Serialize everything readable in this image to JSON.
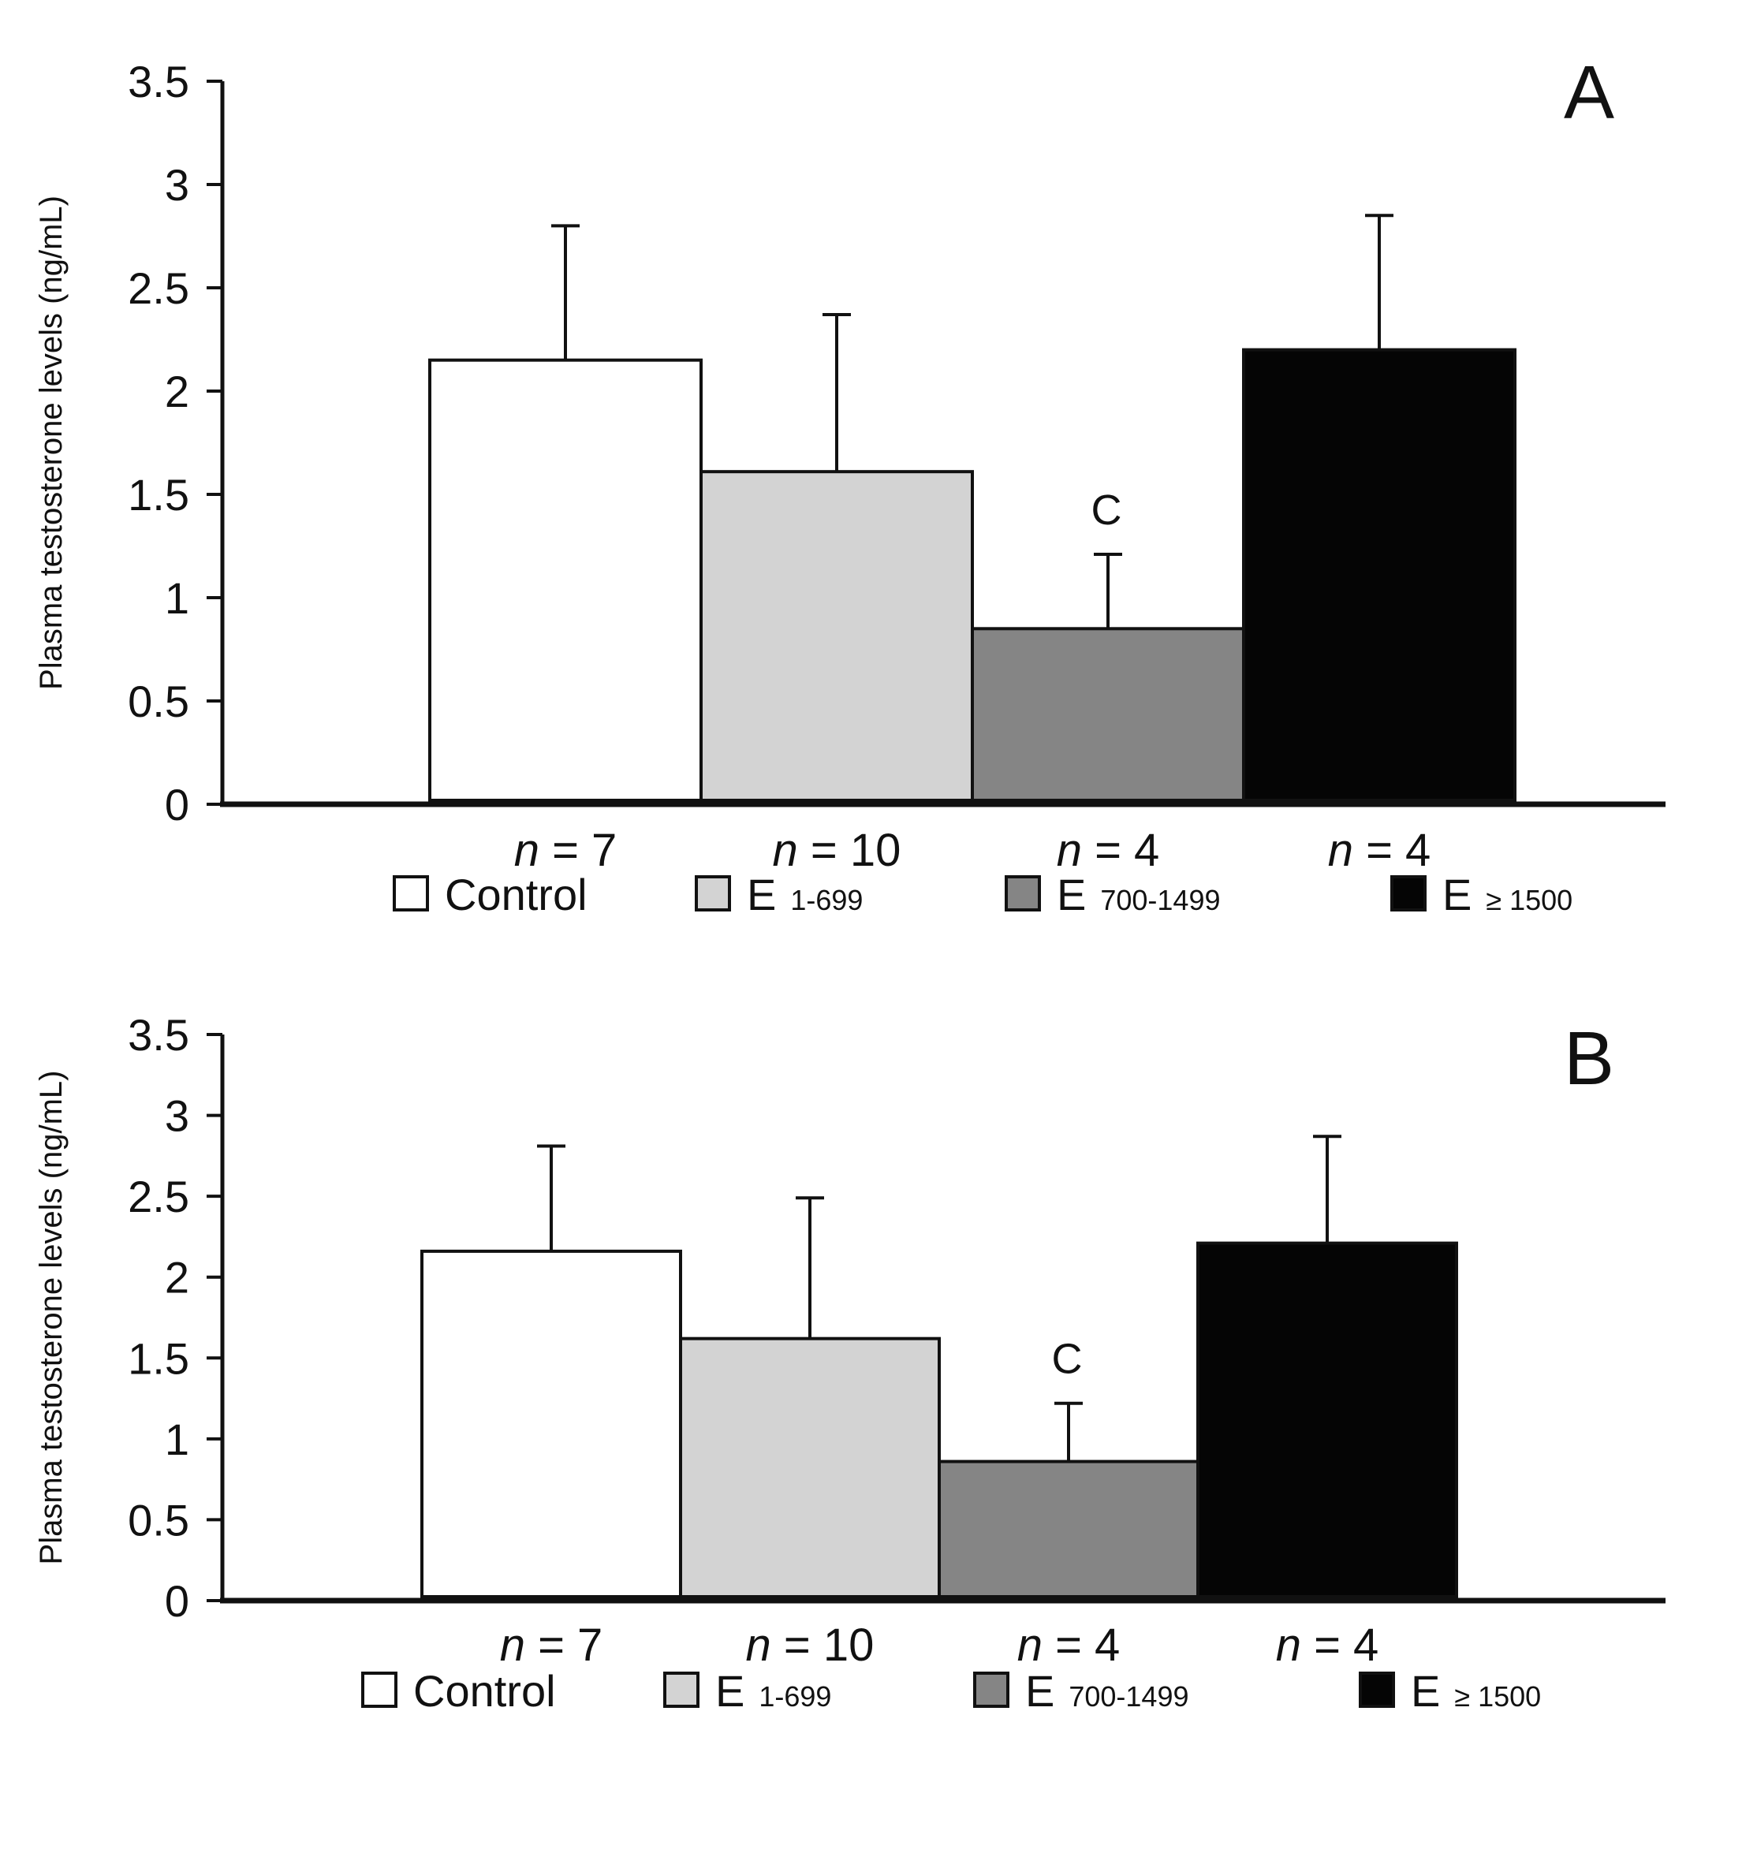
{
  "chart_data": [
    {
      "type": "bar",
      "panel_label": "A",
      "ylabel": "Plasma testosterone levels (ng/mL)",
      "ylim": [
        0,
        3.5
      ],
      "yticks": [
        "0",
        "0.5",
        "1",
        "1.5",
        "2",
        "2.5",
        "3",
        "3.5"
      ],
      "ytick_values": [
        0,
        0.5,
        1,
        1.5,
        2,
        2.5,
        3,
        3.5
      ],
      "categories": [
        "Control",
        "E 1-699",
        "E 700-1499",
        "E ≥ 1500"
      ],
      "n_labels": [
        "n = 7",
        "n = 10",
        "n = 4",
        "n = 4"
      ],
      "values": [
        2.15,
        1.61,
        0.85,
        2.2
      ],
      "error_upper": [
        2.8,
        2.37,
        1.21,
        2.85
      ],
      "significance": [
        "",
        "",
        "C",
        ""
      ],
      "colors": [
        "#ffffff",
        "#d3d3d3",
        "#858585",
        "#050505"
      ],
      "legend": [
        {
          "main": "Control",
          "sub": ""
        },
        {
          "main": "E",
          "sub": "1-699"
        },
        {
          "main": "E",
          "sub": "700-1499"
        },
        {
          "main": "E",
          "sub": "≥ 1500"
        }
      ]
    },
    {
      "type": "bar",
      "panel_label": "B",
      "ylabel": "Plasma testosterone levels (ng/mL)",
      "ylim": [
        0,
        3.5
      ],
      "yticks": [
        "0",
        "0.5",
        "1",
        "1.5",
        "2",
        "2.5",
        "3",
        "3.5"
      ],
      "ytick_values": [
        0,
        0.5,
        1,
        1.5,
        2,
        2.5,
        3,
        3.5
      ],
      "categories": [
        "Control",
        "E 1-699",
        "E 700-1499",
        "E ≥ 1500"
      ],
      "n_labels": [
        "n = 7",
        "n = 10",
        "n = 4",
        "n = 4"
      ],
      "values": [
        2.16,
        1.62,
        0.86,
        2.21
      ],
      "error_upper": [
        2.81,
        2.49,
        1.22,
        2.87
      ],
      "significance": [
        "",
        "",
        "C",
        ""
      ],
      "colors": [
        "#ffffff",
        "#d3d3d3",
        "#858585",
        "#050505"
      ],
      "legend": [
        {
          "main": "Control",
          "sub": ""
        },
        {
          "main": "E",
          "sub": "1-699"
        },
        {
          "main": "E",
          "sub": "700-1499"
        },
        {
          "main": "E",
          "sub": "≥ 1500"
        }
      ]
    }
  ]
}
